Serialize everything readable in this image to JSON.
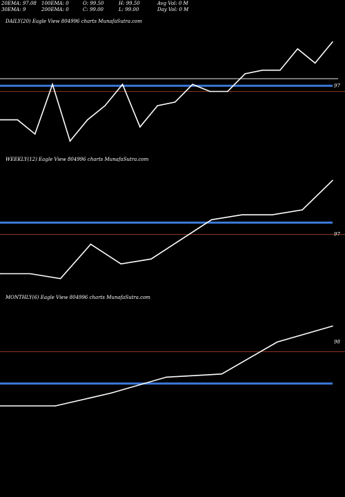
{
  "header": {
    "row1": [
      "20EMA: 97.08",
      "100EMA: 0",
      "O: 99.50",
      "H: 99.50",
      "Avg Vol: 0  M"
    ],
    "row2": [
      "30EMA: 9",
      "200EMA: 0",
      "C: 99.00",
      "L: 99.00",
      "Day Vol: 0  M"
    ]
  },
  "colors": {
    "price_line": "#ffffff",
    "ema_line": "#3b78d8",
    "ref_line": "#b84a2a",
    "gray_line": "#9a9a9a",
    "background": "#000000"
  },
  "chart_data": [
    {
      "type": "line",
      "title": "DAILY(20) Eagle  View  804996  charts MunafaSutra.com",
      "x": [
        1,
        2,
        3,
        4,
        5,
        6,
        7,
        8,
        9,
        10,
        11,
        12,
        13,
        14,
        15,
        16,
        17,
        18,
        19,
        20
      ],
      "values": [
        96.5,
        96.5,
        96.3,
        97.0,
        96.2,
        96.5,
        96.7,
        97.0,
        96.4,
        96.7,
        96.75,
        97.0,
        96.9,
        96.9,
        97.15,
        97.2,
        97.2,
        97.5,
        97.3,
        97.6
      ],
      "y_range": [
        96.0,
        97.8
      ],
      "ema_level": 96.98,
      "gray_level": 97.08,
      "ref_level": 96.9,
      "tick_label": "97",
      "tick_value": 96.98
    },
    {
      "type": "line",
      "title": "WEEKLY(12) Eagle  View  804996  charts MunafaSutra.com",
      "x": [
        1,
        2,
        3,
        4,
        5,
        6,
        7,
        8,
        9,
        10,
        11,
        12
      ],
      "values": [
        96.6,
        96.6,
        96.55,
        96.9,
        96.7,
        96.75,
        96.95,
        97.15,
        97.2,
        97.2,
        97.25,
        97.55
      ],
      "y_range": [
        96.4,
        97.7
      ],
      "ema_level": 97.12,
      "ref_level": 97.0,
      "tick_label": "97",
      "tick_value": 97.0
    },
    {
      "type": "line",
      "title": "MONTHLY(6) Eagle  View  804996  charts MunafaSutra.com",
      "x": [
        1,
        2,
        3,
        4,
        5,
        6,
        7
      ],
      "values": [
        96.8,
        96.8,
        97.0,
        97.25,
        97.3,
        97.8,
        98.05
      ],
      "y_range": [
        96.4,
        98.4
      ],
      "ema_level": 97.15,
      "ref_level": 97.65,
      "tick_label": "98",
      "tick_value": 97.8
    }
  ]
}
